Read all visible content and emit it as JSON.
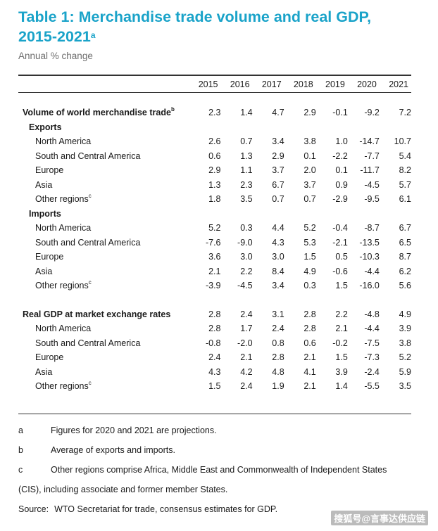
{
  "title_line1": "Table 1: Merchandise trade volume and real GDP,",
  "title_line2": "2015-2021",
  "title_sup": "a",
  "subtitle": "Annual % change",
  "years": [
    "2015",
    "2016",
    "2017",
    "2018",
    "2019",
    "2020",
    "2021"
  ],
  "rows": [
    {
      "label": "Volume of world merchandise trade",
      "sup": "b",
      "level": 0,
      "values": [
        "2.3",
        "1.4",
        "4.7",
        "2.9",
        "-0.1",
        "-9.2",
        "7.2"
      ]
    },
    {
      "label": "Exports",
      "sup": "",
      "level": 1,
      "values": []
    },
    {
      "label": "North America",
      "sup": "",
      "level": 2,
      "values": [
        "2.6",
        "0.7",
        "3.4",
        "3.8",
        "1.0",
        "-14.7",
        "10.7"
      ]
    },
    {
      "label": "South and Central America",
      "sup": "",
      "level": 2,
      "values": [
        "0.6",
        "1.3",
        "2.9",
        "0.1",
        "-2.2",
        "-7.7",
        "5.4"
      ]
    },
    {
      "label": "Europe",
      "sup": "",
      "level": 2,
      "values": [
        "2.9",
        "1.1",
        "3.7",
        "2.0",
        "0.1",
        "-11.7",
        "8.2"
      ]
    },
    {
      "label": "Asia",
      "sup": "",
      "level": 2,
      "values": [
        "1.3",
        "2.3",
        "6.7",
        "3.7",
        "0.9",
        "-4.5",
        "5.7"
      ]
    },
    {
      "label": "Other regions",
      "sup": "c",
      "level": 2,
      "values": [
        "1.8",
        "3.5",
        "0.7",
        "0.7",
        "-2.9",
        "-9.5",
        "6.1"
      ]
    },
    {
      "label": "Imports",
      "sup": "",
      "level": 1,
      "values": []
    },
    {
      "label": "North America",
      "sup": "",
      "level": 2,
      "values": [
        "5.2",
        "0.3",
        "4.4",
        "5.2",
        "-0.4",
        "-8.7",
        "6.7"
      ]
    },
    {
      "label": "South and Central America",
      "sup": "",
      "level": 2,
      "values": [
        "-7.6",
        "-9.0",
        "4.3",
        "5.3",
        "-2.1",
        "-13.5",
        "6.5"
      ]
    },
    {
      "label": "Europe",
      "sup": "",
      "level": 2,
      "values": [
        "3.6",
        "3.0",
        "3.0",
        "1.5",
        "0.5",
        "-10.3",
        "8.7"
      ]
    },
    {
      "label": "Asia",
      "sup": "",
      "level": 2,
      "values": [
        "2.1",
        "2.2",
        "8.4",
        "4.9",
        "-0.6",
        "-4.4",
        "6.2"
      ]
    },
    {
      "label": "Other regions",
      "sup": "c",
      "level": 2,
      "values": [
        "-3.9",
        "-4.5",
        "3.4",
        "0.3",
        "1.5",
        "-16.0",
        "5.6"
      ]
    },
    {
      "spacer": true
    },
    {
      "label": "Real GDP at market exchange rates",
      "sup": "",
      "level": 0,
      "values": [
        "2.8",
        "2.4",
        "3.1",
        "2.8",
        "2.2",
        "-4.8",
        "4.9"
      ]
    },
    {
      "label": "North America",
      "sup": "",
      "level": 2,
      "values": [
        "2.8",
        "1.7",
        "2.4",
        "2.8",
        "2.1",
        "-4.4",
        "3.9"
      ]
    },
    {
      "label": "South and Central America",
      "sup": "",
      "level": 2,
      "values": [
        "-0.8",
        "-2.0",
        "0.8",
        "0.6",
        "-0.2",
        "-7.5",
        "3.8"
      ]
    },
    {
      "label": "Europe",
      "sup": "",
      "level": 2,
      "values": [
        "2.4",
        "2.1",
        "2.8",
        "2.1",
        "1.5",
        "-7.3",
        "5.2"
      ]
    },
    {
      "label": "Asia",
      "sup": "",
      "level": 2,
      "values": [
        "4.3",
        "4.2",
        "4.8",
        "4.1",
        "3.9",
        "-2.4",
        "5.9"
      ]
    },
    {
      "label": "Other regions",
      "sup": "c",
      "level": 2,
      "values": [
        "1.5",
        "2.4",
        "1.9",
        "2.1",
        "1.4",
        "-5.5",
        "3.5"
      ]
    }
  ],
  "notes": {
    "a": {
      "key": "a",
      "text": "Figures for 2020 and 2021 are projections."
    },
    "b": {
      "key": "b",
      "text": "Average of exports and imports."
    },
    "c": {
      "key": "c",
      "text": "Other regions comprise Africa, Middle East and Commonwealth of Independent States",
      "text2": "(CIS), including associate and former member States."
    },
    "source_label": "Source:",
    "source_text": "WTO Secretariat for trade, consensus estimates for GDP."
  },
  "watermark": "搜狐号@言事达供应链"
}
